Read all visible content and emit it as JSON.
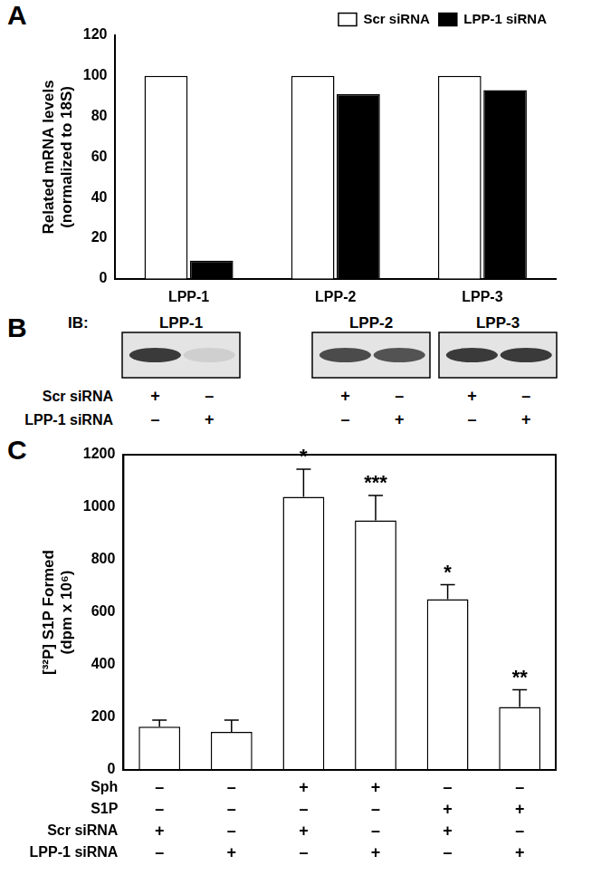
{
  "chart_data": [
    {
      "type": "bar",
      "title": "A",
      "categories": [
        "LPP-1",
        "LPP-2",
        "LPP-3"
      ],
      "series": [
        {
          "name": "Scr siRNA",
          "color": "#ffffff",
          "values": [
            100,
            100,
            100
          ]
        },
        {
          "name": "LPP-1 siRNA",
          "color": "#000000",
          "values": [
            9,
            91,
            93
          ]
        }
      ],
      "y_label": [
        "Related mRNA levels",
        "(normalized to 18S)"
      ],
      "ylim": [
        0,
        120
      ],
      "yticks": [
        0,
        20,
        40,
        60,
        80,
        100,
        120
      ],
      "grid": false,
      "legend": "upper right"
    },
    {
      "type": "bar",
      "title": "C",
      "categories": [
        null,
        null,
        null,
        null,
        null,
        null
      ],
      "values": [
        165,
        145,
        1040,
        950,
        650,
        240
      ],
      "errors": [
        25,
        45,
        105,
        95,
        55,
        65
      ],
      "annotations": [
        null,
        null,
        "*",
        "***",
        "*",
        "**"
      ],
      "color": "#ffffff",
      "y_label": [
        "[³²P] S1P Formed",
        "(dpm x 10⁶)"
      ],
      "ylim": [
        0,
        1200
      ],
      "yticks": [
        0,
        200,
        400,
        600,
        800,
        1000,
        1200
      ],
      "grid": false,
      "tick_labels": "y",
      "conditions": [
        {
          "label": "Sph",
          "marks": [
            "–",
            "–",
            "+",
            "+",
            "–",
            "–"
          ]
        },
        {
          "label": "S1P",
          "marks": [
            "–",
            "–",
            "–",
            "–",
            "+",
            "+"
          ]
        },
        {
          "label": "Scr siRNA",
          "marks": [
            "+",
            "–",
            "+",
            "–",
            "+",
            "–"
          ]
        },
        {
          "label": "LPP-1 siRNA",
          "marks": [
            "–",
            "+",
            "–",
            "+",
            "–",
            "+"
          ]
        }
      ]
    }
  ],
  "blot": {
    "title": "B",
    "label": "IB:",
    "row_labels": [
      "Scr siRNA",
      "LPP-1 siRNA"
    ],
    "blots": [
      {
        "name": "LPP-1",
        "band_intensity": [
          1,
          0.12
        ],
        "marks": [
          [
            "+",
            "–"
          ],
          [
            "–",
            "+"
          ]
        ]
      },
      {
        "name": "LPP-2",
        "band_intensity": [
          0.9,
          0.85
        ],
        "marks": [
          [
            "+",
            "–"
          ],
          [
            "–",
            "+"
          ]
        ]
      },
      {
        "name": "LPP-3",
        "band_intensity": [
          1,
          1
        ],
        "marks": [
          [
            "+",
            "–"
          ],
          [
            "–",
            "+"
          ]
        ]
      }
    ]
  }
}
